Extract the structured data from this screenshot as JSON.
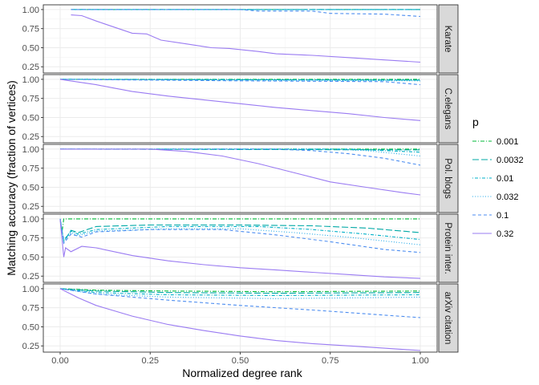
{
  "chart_data": {
    "type": "line",
    "xlabel": "Normalized degree rank",
    "ylabel": "Matching accuracy (fraction of vertices)",
    "xlim": [
      0,
      1
    ],
    "ylim": [
      0.2,
      1.02
    ],
    "x_ticks": [
      "0.00",
      "0.25",
      "0.50",
      "0.75",
      "1.00"
    ],
    "y_ticks": [
      "0.25",
      "0.50",
      "0.75",
      "1.00"
    ],
    "grid": true,
    "legend": {
      "title": "p",
      "placement": "right",
      "entries": [
        {
          "label": "0.001",
          "color": "#00BA38",
          "dash": "dashdot"
        },
        {
          "label": "0.0032",
          "color": "#00A9A6",
          "dash": "longdash"
        },
        {
          "label": "0.01",
          "color": "#00B0C8",
          "dash": "dotdash"
        },
        {
          "label": "0.032",
          "color": "#1FA8E8",
          "dash": "dotted"
        },
        {
          "label": "0.1",
          "color": "#4C8DF0",
          "dash": "dashed"
        },
        {
          "label": "0.32",
          "color": "#9A7BF2",
          "dash": "solid"
        }
      ]
    },
    "panels": [
      {
        "label": "Karate",
        "series": [
          {
            "p": "0.001",
            "points": [
              [
                0.03,
                1.0
              ],
              [
                1.0,
                1.0
              ]
            ]
          },
          {
            "p": "0.0032",
            "points": [
              [
                0.03,
                1.0
              ],
              [
                1.0,
                1.0
              ]
            ]
          },
          {
            "p": "0.01",
            "points": [
              [
                0.03,
                1.0
              ],
              [
                1.0,
                1.0
              ]
            ]
          },
          {
            "p": "0.032",
            "points": [
              [
                0.03,
                1.0
              ],
              [
                1.0,
                1.0
              ]
            ]
          },
          {
            "p": "0.1",
            "points": [
              [
                0.03,
                1.0
              ],
              [
                0.5,
                1.0
              ],
              [
                0.55,
                0.98
              ],
              [
                0.7,
                0.98
              ],
              [
                0.75,
                0.95
              ],
              [
                0.9,
                0.94
              ],
              [
                1.0,
                0.91
              ]
            ]
          },
          {
            "p": "0.32",
            "points": [
              [
                0.03,
                0.93
              ],
              [
                0.06,
                0.92
              ],
              [
                0.1,
                0.85
              ],
              [
                0.15,
                0.77
              ],
              [
                0.2,
                0.69
              ],
              [
                0.24,
                0.68
              ],
              [
                0.28,
                0.6
              ],
              [
                0.35,
                0.55
              ],
              [
                0.42,
                0.5
              ],
              [
                0.47,
                0.49
              ],
              [
                0.55,
                0.45
              ],
              [
                0.6,
                0.42
              ],
              [
                0.7,
                0.4
              ],
              [
                0.8,
                0.37
              ],
              [
                0.9,
                0.34
              ],
              [
                1.0,
                0.31
              ]
            ]
          }
        ]
      },
      {
        "label": "C.elegans",
        "series": [
          {
            "p": "0.001",
            "points": [
              [
                0.0,
                1.0
              ],
              [
                1.0,
                1.0
              ]
            ]
          },
          {
            "p": "0.0032",
            "points": [
              [
                0.0,
                1.0
              ],
              [
                1.0,
                0.99
              ]
            ]
          },
          {
            "p": "0.01",
            "points": [
              [
                0.0,
                1.0
              ],
              [
                1.0,
                0.99
              ]
            ]
          },
          {
            "p": "0.032",
            "points": [
              [
                0.0,
                1.0
              ],
              [
                1.0,
                0.98
              ]
            ]
          },
          {
            "p": "0.1",
            "points": [
              [
                0.0,
                1.0
              ],
              [
                0.5,
                0.98
              ],
              [
                0.9,
                0.97
              ],
              [
                1.0,
                0.93
              ]
            ]
          },
          {
            "p": "0.32",
            "points": [
              [
                0.0,
                1.0
              ],
              [
                0.1,
                0.93
              ],
              [
                0.2,
                0.84
              ],
              [
                0.3,
                0.78
              ],
              [
                0.4,
                0.73
              ],
              [
                0.5,
                0.68
              ],
              [
                0.6,
                0.63
              ],
              [
                0.7,
                0.59
              ],
              [
                0.8,
                0.55
              ],
              [
                0.9,
                0.5
              ],
              [
                1.0,
                0.46
              ]
            ]
          }
        ]
      },
      {
        "label": "Pol. blogs",
        "series": [
          {
            "p": "0.001",
            "points": [
              [
                0.0,
                1.0
              ],
              [
                1.0,
                1.0
              ]
            ]
          },
          {
            "p": "0.0032",
            "points": [
              [
                0.0,
                1.0
              ],
              [
                1.0,
                0.99
              ]
            ]
          },
          {
            "p": "0.01",
            "points": [
              [
                0.0,
                1.0
              ],
              [
                0.8,
                1.0
              ],
              [
                1.0,
                0.96
              ]
            ]
          },
          {
            "p": "0.032",
            "points": [
              [
                0.0,
                1.0
              ],
              [
                0.75,
                1.0
              ],
              [
                0.85,
                0.98
              ],
              [
                1.0,
                0.91
              ]
            ]
          },
          {
            "p": "0.1",
            "points": [
              [
                0.0,
                1.0
              ],
              [
                0.6,
                1.0
              ],
              [
                0.7,
                0.98
              ],
              [
                0.8,
                0.94
              ],
              [
                0.9,
                0.88
              ],
              [
                1.0,
                0.79
              ]
            ]
          },
          {
            "p": "0.32",
            "points": [
              [
                0.0,
                1.0
              ],
              [
                0.25,
                1.0
              ],
              [
                0.35,
                0.97
              ],
              [
                0.45,
                0.91
              ],
              [
                0.55,
                0.81
              ],
              [
                0.65,
                0.69
              ],
              [
                0.75,
                0.57
              ],
              [
                0.85,
                0.5
              ],
              [
                0.95,
                0.43
              ],
              [
                1.0,
                0.4
              ]
            ]
          }
        ]
      },
      {
        "label": "Protein inter.",
        "series": [
          {
            "p": "0.001",
            "points": [
              [
                0.0,
                1.0
              ],
              [
                0.005,
                0.82
              ],
              [
                0.01,
                1.0
              ],
              [
                1.0,
                1.0
              ]
            ]
          },
          {
            "p": "0.0032",
            "points": [
              [
                0.0,
                1.0
              ],
              [
                0.01,
                0.7
              ],
              [
                0.03,
                0.85
              ],
              [
                0.05,
                0.82
              ],
              [
                0.1,
                0.9
              ],
              [
                0.25,
                0.92
              ],
              [
                0.5,
                0.92
              ],
              [
                0.7,
                0.91
              ],
              [
                0.85,
                0.88
              ],
              [
                1.0,
                0.82
              ]
            ]
          },
          {
            "p": "0.01",
            "points": [
              [
                0.0,
                1.0
              ],
              [
                0.01,
                0.72
              ],
              [
                0.03,
                0.84
              ],
              [
                0.05,
                0.8
              ],
              [
                0.1,
                0.86
              ],
              [
                0.3,
                0.9
              ],
              [
                0.55,
                0.9
              ],
              [
                0.7,
                0.86
              ],
              [
                0.85,
                0.8
              ],
              [
                1.0,
                0.73
              ]
            ]
          },
          {
            "p": "0.032",
            "points": [
              [
                0.0,
                1.0
              ],
              [
                0.01,
                0.7
              ],
              [
                0.03,
                0.82
              ],
              [
                0.05,
                0.78
              ],
              [
                0.1,
                0.84
              ],
              [
                0.3,
                0.87
              ],
              [
                0.5,
                0.87
              ],
              [
                0.65,
                0.82
              ],
              [
                0.8,
                0.76
              ],
              [
                1.0,
                0.66
              ]
            ]
          },
          {
            "p": "0.1",
            "points": [
              [
                0.0,
                1.0
              ],
              [
                0.01,
                0.68
              ],
              [
                0.03,
                0.8
              ],
              [
                0.06,
                0.76
              ],
              [
                0.1,
                0.83
              ],
              [
                0.25,
                0.86
              ],
              [
                0.45,
                0.86
              ],
              [
                0.6,
                0.79
              ],
              [
                0.75,
                0.7
              ],
              [
                0.9,
                0.6
              ],
              [
                1.0,
                0.56
              ]
            ]
          },
          {
            "p": "0.32",
            "points": [
              [
                0.0,
                0.99
              ],
              [
                0.01,
                0.5
              ],
              [
                0.015,
                0.62
              ],
              [
                0.03,
                0.57
              ],
              [
                0.06,
                0.64
              ],
              [
                0.1,
                0.62
              ],
              [
                0.2,
                0.52
              ],
              [
                0.3,
                0.45
              ],
              [
                0.4,
                0.4
              ],
              [
                0.5,
                0.36
              ],
              [
                0.6,
                0.33
              ],
              [
                0.7,
                0.3
              ],
              [
                0.8,
                0.27
              ],
              [
                0.9,
                0.24
              ],
              [
                1.0,
                0.22
              ]
            ]
          }
        ]
      },
      {
        "label": "arXiv citation",
        "series": [
          {
            "p": "0.001",
            "points": [
              [
                0.0,
                1.0
              ],
              [
                0.1,
                0.98
              ],
              [
                0.3,
                0.97
              ],
              [
                0.6,
                0.96
              ],
              [
                1.0,
                0.97
              ]
            ]
          },
          {
            "p": "0.0032",
            "points": [
              [
                0.0,
                1.0
              ],
              [
                0.1,
                0.97
              ],
              [
                0.3,
                0.95
              ],
              [
                0.6,
                0.94
              ],
              [
                1.0,
                0.95
              ]
            ]
          },
          {
            "p": "0.01",
            "points": [
              [
                0.0,
                1.0
              ],
              [
                0.1,
                0.95
              ],
              [
                0.3,
                0.92
              ],
              [
                0.6,
                0.91
              ],
              [
                1.0,
                0.92
              ]
            ]
          },
          {
            "p": "0.032",
            "points": [
              [
                0.0,
                1.0
              ],
              [
                0.1,
                0.93
              ],
              [
                0.3,
                0.89
              ],
              [
                0.6,
                0.87
              ],
              [
                1.0,
                0.89
              ]
            ]
          },
          {
            "p": "0.1",
            "points": [
              [
                0.0,
                1.0
              ],
              [
                0.1,
                0.93
              ],
              [
                0.3,
                0.85
              ],
              [
                0.5,
                0.78
              ],
              [
                0.7,
                0.72
              ],
              [
                0.85,
                0.67
              ],
              [
                1.0,
                0.62
              ]
            ]
          },
          {
            "p": "0.32",
            "points": [
              [
                0.0,
                1.0
              ],
              [
                0.05,
                0.88
              ],
              [
                0.1,
                0.78
              ],
              [
                0.2,
                0.64
              ],
              [
                0.3,
                0.53
              ],
              [
                0.4,
                0.45
              ],
              [
                0.5,
                0.38
              ],
              [
                0.6,
                0.32
              ],
              [
                0.7,
                0.28
              ],
              [
                0.8,
                0.25
              ],
              [
                0.9,
                0.22
              ],
              [
                1.0,
                0.19
              ]
            ]
          }
        ]
      }
    ]
  }
}
